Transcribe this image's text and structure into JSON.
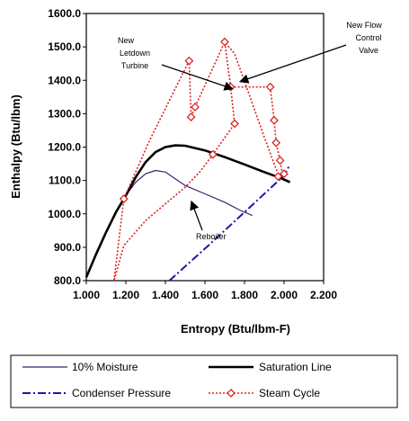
{
  "chart_data": {
    "type": "line",
    "xlabel": "Entropy (Btu/lbm-F)",
    "ylabel": "Enthalpy (Btu/lbm)",
    "xlim": [
      1.0,
      2.2
    ],
    "ylim": [
      800.0,
      1600.0
    ],
    "x_ticks": [
      "1.000",
      "1.200",
      "1.400",
      "1.600",
      "1.800",
      "2.000",
      "2.200"
    ],
    "y_ticks": [
      "800.0",
      "900.0",
      "1000.0",
      "1100.0",
      "1200.0",
      "1300.0",
      "1400.0",
      "1500.0",
      "1600.0"
    ],
    "grid": false,
    "legend_position": "bottom",
    "series": [
      {
        "name": "10% Moisture",
        "color": "#3d1f6e",
        "style": "solid-thin",
        "points": [
          [
            1.0,
            810
          ],
          [
            1.05,
            880
          ],
          [
            1.1,
            945
          ],
          [
            1.15,
            1005
          ],
          [
            1.2,
            1055
          ],
          [
            1.25,
            1095
          ],
          [
            1.3,
            1120
          ],
          [
            1.35,
            1130
          ],
          [
            1.4,
            1125
          ],
          [
            1.45,
            1105
          ],
          [
            1.5,
            1085
          ],
          [
            1.6,
            1060
          ],
          [
            1.7,
            1035
          ],
          [
            1.78,
            1010
          ],
          [
            1.84,
            995
          ]
        ]
      },
      {
        "name": "Saturation Line",
        "color": "#000000",
        "style": "solid-thick",
        "points": [
          [
            1.0,
            810
          ],
          [
            1.05,
            880
          ],
          [
            1.1,
            945
          ],
          [
            1.15,
            1005
          ],
          [
            1.2,
            1055
          ],
          [
            1.25,
            1110
          ],
          [
            1.3,
            1155
          ],
          [
            1.35,
            1185
          ],
          [
            1.4,
            1200
          ],
          [
            1.45,
            1205
          ],
          [
            1.5,
            1204
          ],
          [
            1.6,
            1190
          ],
          [
            1.7,
            1170
          ],
          [
            1.8,
            1148
          ],
          [
            1.9,
            1125
          ],
          [
            1.98,
            1108
          ],
          [
            2.03,
            1095
          ]
        ]
      },
      {
        "name": "Condenser Pressure",
        "color": "#1a1aa8",
        "style": "dash-dot",
        "points": [
          [
            1.42,
            800
          ],
          [
            1.6,
            896
          ],
          [
            1.8,
            1005
          ],
          [
            1.9,
            1060
          ],
          [
            2.0,
            1115
          ],
          [
            2.03,
            1148
          ]
        ]
      },
      {
        "name": "Steam Cycle",
        "color": "#dd2222",
        "style": "dotted-diamond",
        "points": [
          [
            1.14,
            800
          ],
          [
            1.19,
            1045
          ],
          [
            1.32,
            1220
          ],
          [
            1.45,
            1375
          ],
          [
            1.52,
            1458
          ],
          [
            1.53,
            1290
          ],
          [
            1.55,
            1320
          ],
          [
            1.7,
            1515
          ],
          [
            1.73,
            1380
          ],
          [
            1.75,
            1270
          ],
          [
            1.64,
            1178
          ],
          [
            1.58,
            1130
          ],
          [
            1.5,
            1080
          ],
          [
            1.4,
            1030
          ],
          [
            1.3,
            980
          ],
          [
            1.19,
            905
          ],
          [
            1.14,
            800
          ]
        ],
        "path2": [
          [
            1.73,
            1380
          ],
          [
            1.93,
            1380
          ],
          [
            1.95,
            1280
          ],
          [
            1.96,
            1213
          ],
          [
            1.98,
            1160
          ],
          [
            1.99,
            1125
          ],
          [
            1.97,
            1112
          ],
          [
            2.0,
            1120
          ],
          [
            1.97,
            1118
          ],
          [
            1.9,
            1230
          ],
          [
            1.75,
            1480
          ],
          [
            1.7,
            1515
          ]
        ],
        "markers": [
          [
            1.19,
            1045
          ],
          [
            1.52,
            1458
          ],
          [
            1.53,
            1290
          ],
          [
            1.55,
            1320
          ],
          [
            1.7,
            1515
          ],
          [
            1.73,
            1380
          ],
          [
            1.75,
            1270
          ],
          [
            1.64,
            1178
          ],
          [
            1.93,
            1380
          ],
          [
            1.95,
            1280
          ],
          [
            1.96,
            1213
          ],
          [
            1.98,
            1160
          ],
          [
            1.97,
            1112
          ],
          [
            2.0,
            1120
          ]
        ]
      }
    ],
    "annotations": [
      {
        "text": "New",
        "target": [
          1.73,
          1380
        ]
      },
      {
        "text": "Letdown",
        "target": [
          1.73,
          1380
        ]
      },
      {
        "text": "Turbine",
        "target": [
          1.73,
          1380
        ]
      },
      {
        "text": "New Flow",
        "target": [
          1.76,
          1380
        ]
      },
      {
        "text": "Control",
        "target": [
          1.76,
          1380
        ]
      },
      {
        "text": "Valve",
        "target": [
          1.76,
          1380
        ]
      },
      {
        "text": "Reboiler",
        "target": [
          1.43,
          1070
        ]
      }
    ]
  },
  "legend": {
    "items": [
      {
        "label": "10% Moisture",
        "series": 0
      },
      {
        "label": "Saturation Line",
        "series": 1
      },
      {
        "label": "Condenser Pressure",
        "series": 2
      },
      {
        "label": "Steam Cycle",
        "series": 3
      }
    ]
  }
}
